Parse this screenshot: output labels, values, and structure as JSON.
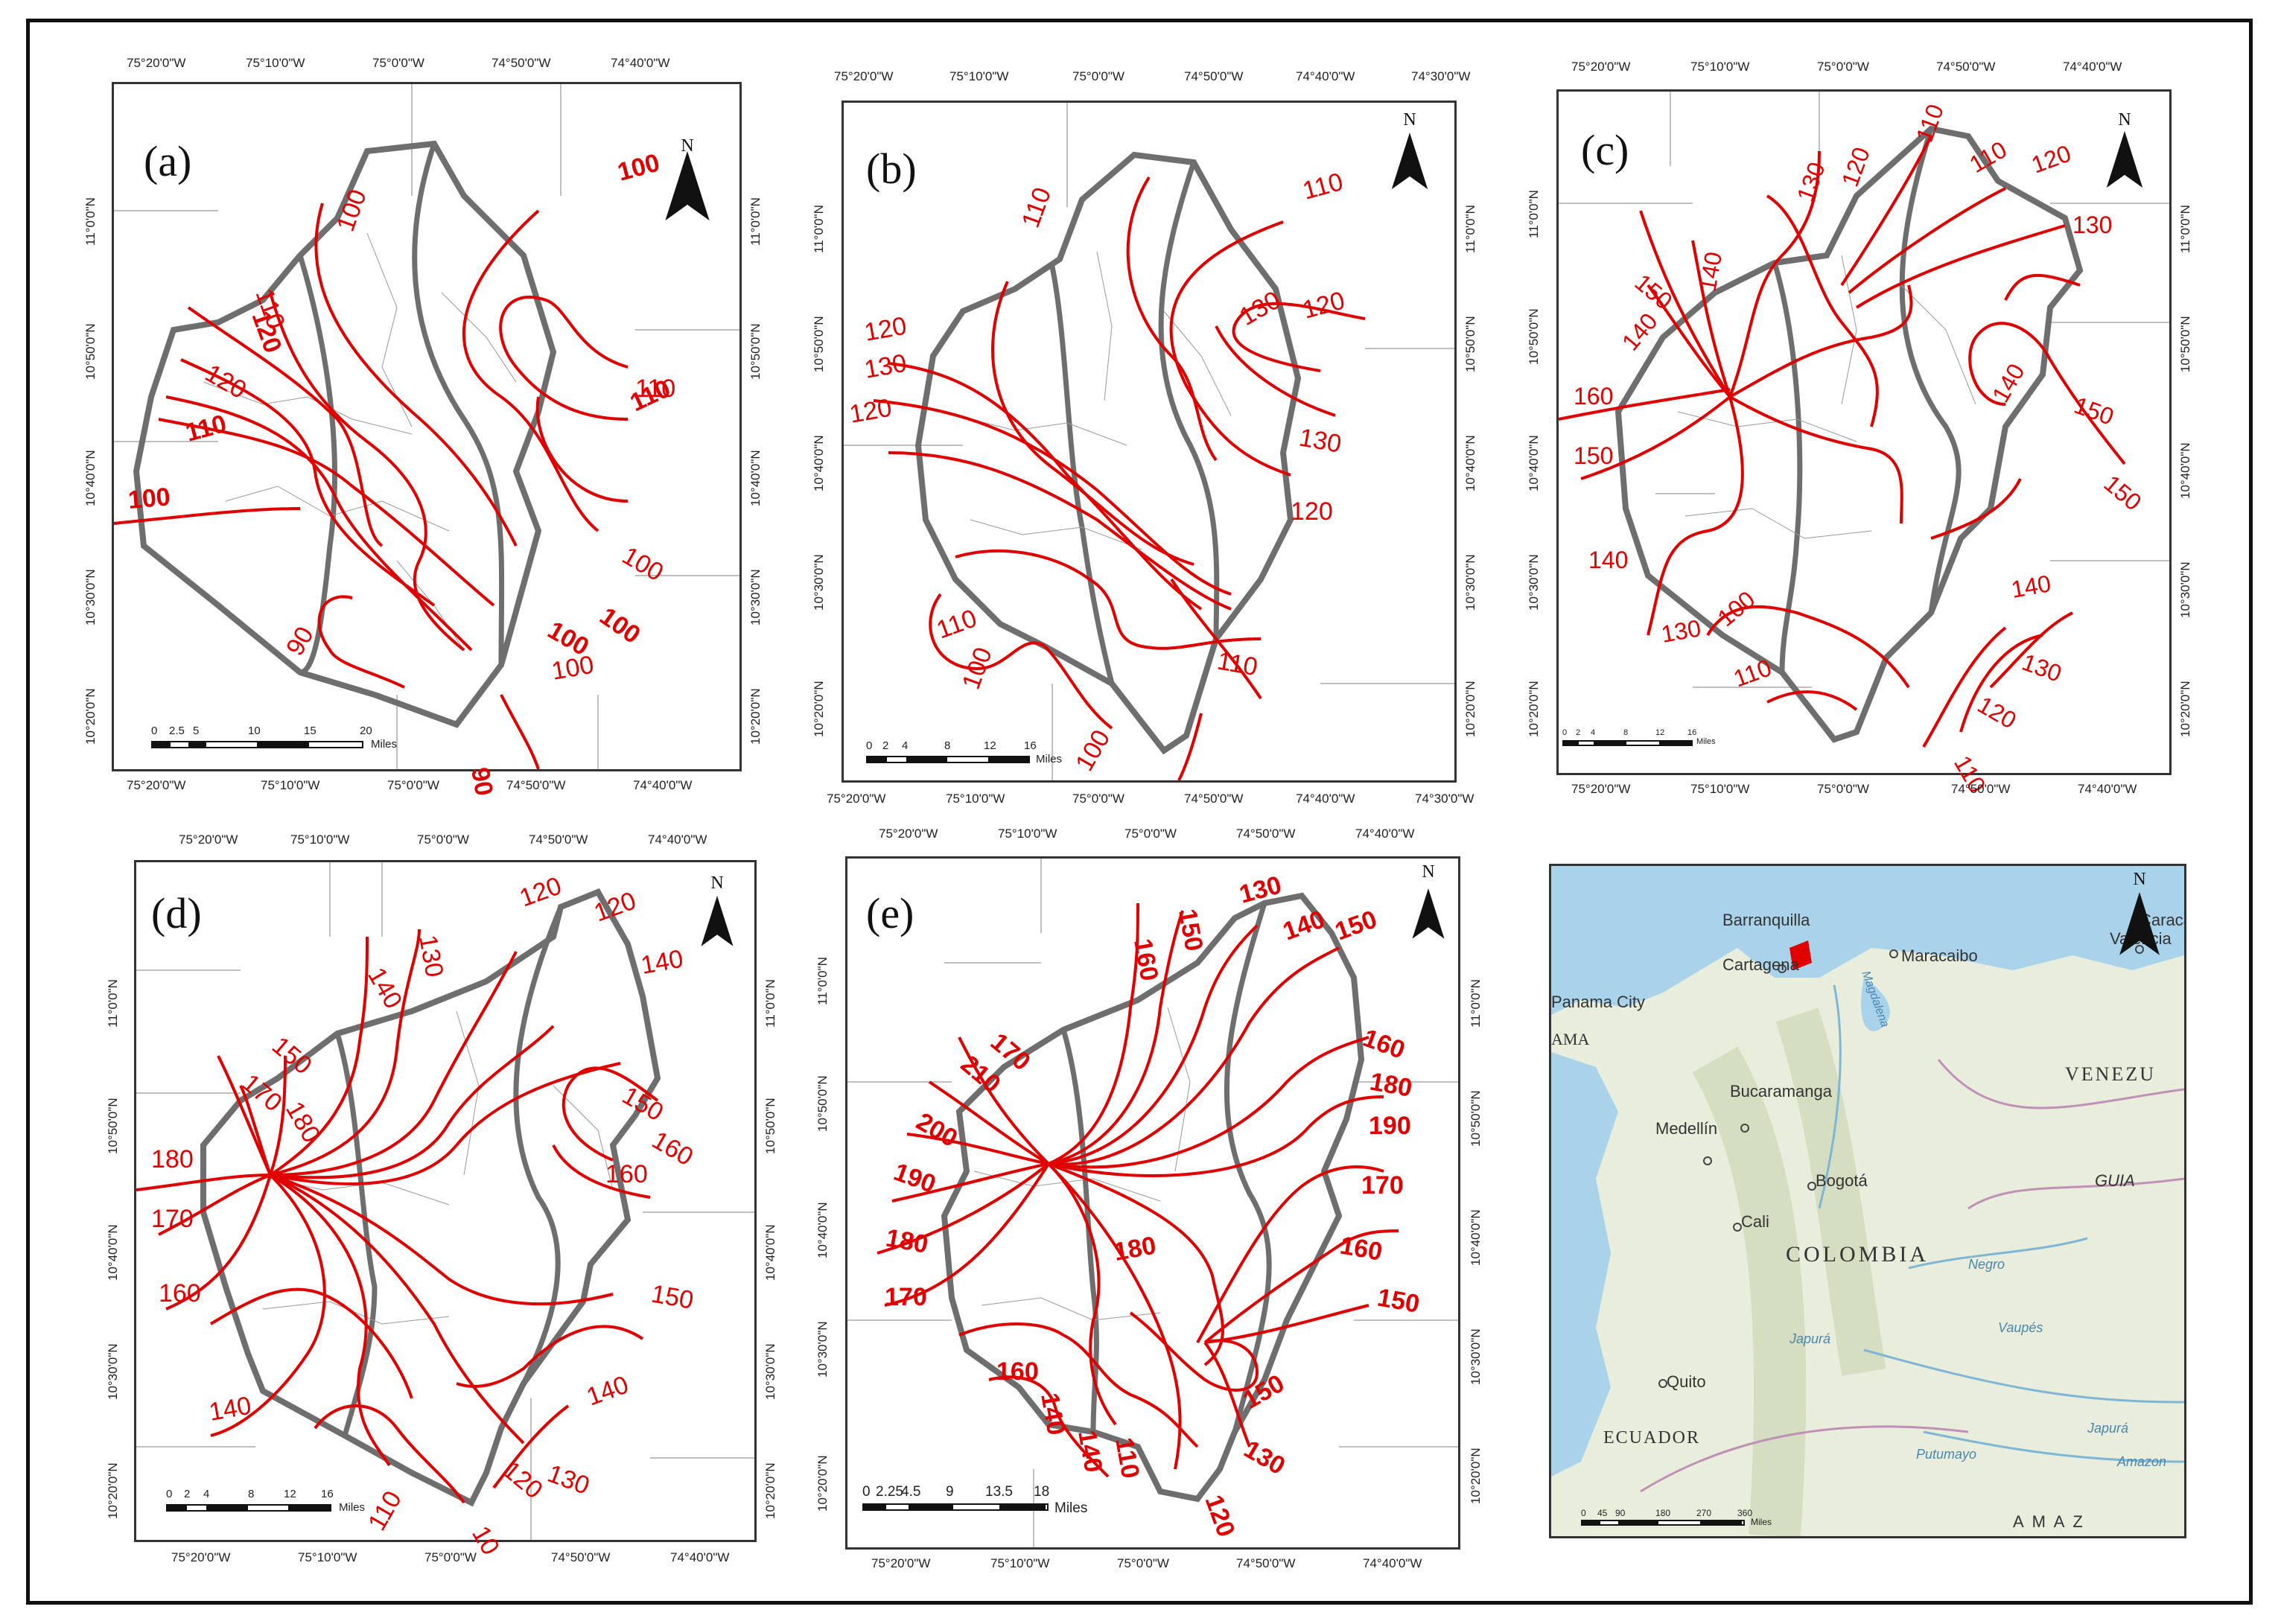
{
  "panels": {
    "a": {
      "label": "(a)",
      "top_ticks": [
        "75°20'0\"W",
        "75°10'0\"W",
        "75°0'0\"W",
        "74°50'0\"W",
        "74°40'0\"W"
      ],
      "bottom_ticks": [
        "75°20'0\"W",
        "75°10'0\"W",
        "75°0'0\"W",
        "74°50'0\"W",
        "74°40'0\"W"
      ],
      "left_ticks": [
        "11°0'0\"N",
        "10°50'0\"N",
        "10°40'0\"N",
        "10°30'0\"N",
        "10°20'0\"N"
      ],
      "right_ticks": [
        "11°0'0\"N",
        "10°50'0\"N",
        "10°40'0\"N",
        "10°30'0\"N",
        "10°20'0\"N"
      ],
      "scale": {
        "nums": [
          "0",
          "2.5",
          "5",
          "10",
          "15",
          "20"
        ],
        "unit": "Miles"
      },
      "contour_labels": [
        "100",
        "100",
        "110",
        "120",
        "120",
        "110",
        "100",
        "90",
        "100",
        "100",
        "100",
        "110",
        "110",
        "100",
        "90"
      ]
    },
    "b": {
      "label": "(b)",
      "top_ticks": [
        "75°20'0\"W",
        "75°10'0\"W",
        "75°0'0\"W",
        "74°50'0\"W",
        "74°40'0\"W",
        "74°30'0\"W"
      ],
      "bottom_ticks": [
        "75°20'0\"W",
        "75°10'0\"W",
        "75°0'0\"W",
        "74°50'0\"W",
        "74°40'0\"W",
        "74°30'0\"W"
      ],
      "left_ticks": [
        "11°0'0\"N",
        "10°50'0\"N",
        "10°40'0\"N",
        "10°30'0\"N",
        "10°20'0\"N"
      ],
      "right_ticks": [
        "11°0'0\"N",
        "10°50'0\"N",
        "10°40'0\"N",
        "10°30'0\"N",
        "10°20'0\"N"
      ],
      "scale": {
        "nums": [
          "0",
          "2",
          "4",
          "8",
          "12",
          "16"
        ],
        "unit": "Miles"
      },
      "contour_labels": [
        "110",
        "110",
        "120",
        "130",
        "120",
        "130",
        "120",
        "110",
        "100",
        "110",
        "130",
        "120",
        "100"
      ]
    },
    "c": {
      "label": "(c)",
      "top_ticks": [
        "75°20'0\"W",
        "75°10'0\"W",
        "75°0'0\"W",
        "74°50'0\"W",
        "74°40'0\"W"
      ],
      "bottom_ticks": [
        "75°20'0\"W",
        "75°10'0\"W",
        "75°0'0\"W",
        "74°50'0\"W",
        "74°40'0\"W"
      ],
      "left_ticks": [
        "11°0'0\"N",
        "10°50'0\"N",
        "10°40'0\"N",
        "10°30'0\"N",
        "10°20'0\"N"
      ],
      "right_ticks": [
        "11°0'0\"N",
        "10°50'0\"N",
        "10°40'0\"N",
        "10°30'0\"N",
        "10°20'0\"N"
      ],
      "scale": {
        "nums": [
          "0",
          "2",
          "4",
          "8",
          "12",
          "16"
        ],
        "unit": "Miles"
      },
      "contour_labels": [
        "110",
        "130",
        "120",
        "110",
        "120",
        "130",
        "140",
        "150",
        "140",
        "160",
        "150",
        "140",
        "140",
        "150",
        "150",
        "130",
        "100",
        "110",
        "140",
        "130",
        "120",
        "110"
      ]
    },
    "d": {
      "label": "(d)",
      "top_ticks": [
        "75°20'0\"W",
        "75°10'0\"W",
        "75°0'0\"W",
        "74°50'0\"W",
        "74°40'0\"W"
      ],
      "bottom_ticks": [
        "75°20'0\"W",
        "75°10'0\"W",
        "75°0'0\"W",
        "74°50'0\"W",
        "74°40'0\"W"
      ],
      "left_ticks": [
        "11°0'0\"N",
        "10°50'0\"N",
        "10°40'0\"N",
        "10°30'0\"N",
        "10°20'0\"N"
      ],
      "right_ticks": [
        "11°0'0\"N",
        "10°50'0\"N",
        "10°40'0\"N",
        "10°30'0\"N",
        "10°20'0\"N"
      ],
      "scale": {
        "nums": [
          "0",
          "2",
          "4",
          "8",
          "12",
          "16"
        ],
        "unit": "Miles"
      },
      "contour_labels": [
        "120",
        "130",
        "140",
        "120",
        "140",
        "150",
        "170",
        "180",
        "180",
        "170",
        "160",
        "150",
        "160",
        "160",
        "150",
        "140",
        "140",
        "130",
        "120",
        "110",
        "10"
      ]
    },
    "e": {
      "label": "(e)",
      "top_ticks": [
        "75°20'0\"W",
        "75°10'0\"W",
        "75°0'0\"W",
        "74°50'0\"W",
        "74°40'0\"W"
      ],
      "bottom_ticks": [
        "75°20'0\"W",
        "75°10'0\"W",
        "75°0'0\"W",
        "74°50'0\"W",
        "74°40'0\"W"
      ],
      "left_ticks": [
        "11°0'0\"N",
        "10°50'0\"N",
        "10°40'0\"N",
        "10°30'0\"N",
        "10°20'0\"N"
      ],
      "right_ticks": [
        "11°0'0\"N",
        "10°50'0\"N",
        "10°40'0\"N",
        "10°30'0\"N",
        "10°20'0\"N"
      ],
      "scale": {
        "nums": [
          "0",
          "2.25",
          "4.5",
          "9",
          "13.5",
          "18"
        ],
        "unit": "Miles"
      },
      "contour_labels": [
        "130",
        "150",
        "160",
        "140",
        "150",
        "170",
        "210",
        "200",
        "190",
        "180",
        "170",
        "160",
        "160",
        "180",
        "190",
        "170",
        "160",
        "150",
        "180",
        "150",
        "140",
        "130",
        "120",
        "140",
        "110"
      ]
    }
  },
  "north_label": "N",
  "locator_map": {
    "places": [
      "Barranquilla",
      "Cartagena",
      "Maracaibo",
      "Panama City",
      "Bucaramanga",
      "Medellín",
      "Bogotá",
      "Cali",
      "Quito",
      "Valencia",
      "Caracas"
    ],
    "regions": [
      "COLOMBIA",
      "VENEZU",
      "ECUADOR",
      "AMA",
      "GUIA",
      "A M A Z"
    ],
    "rivers": [
      "Magdalena",
      "Negro",
      "Japurá",
      "Vaupés",
      "Japurá",
      "Putumayo",
      "Amazon"
    ],
    "scale": {
      "nums": [
        "0",
        "45",
        "90",
        "180",
        "270",
        "360"
      ],
      "unit": "Miles"
    }
  },
  "colors": {
    "contour": "#e00000",
    "boundary": "#6e6e6e",
    "sea": "#a9d3ea",
    "land": "#e8eedb"
  }
}
